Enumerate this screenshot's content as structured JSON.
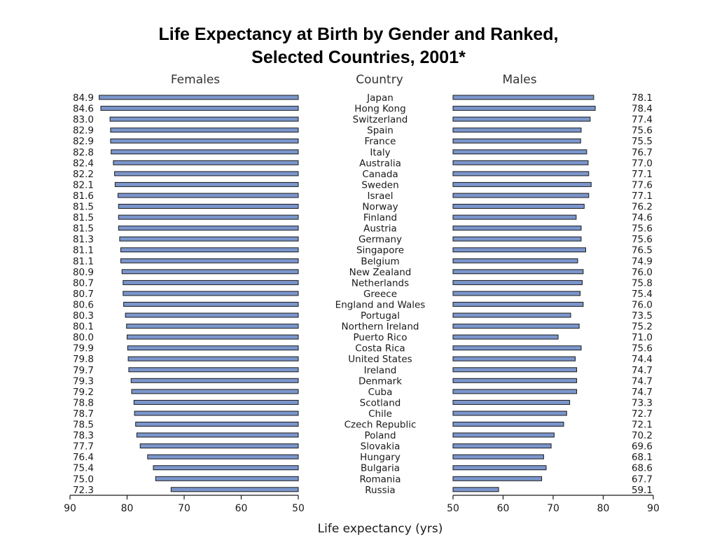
{
  "title_line1": "Life Expectancy at Birth by Gender and Ranked,",
  "title_line2": "Selected Countries, 2001*",
  "chart_data": {
    "type": "bar",
    "orientation": "horizontal",
    "layout": "back-to-back",
    "headers": {
      "left": "Females",
      "center": "Country",
      "right": "Males"
    },
    "categories": [
      "Japan",
      "Hong Kong",
      "Switzerland",
      "Spain",
      "France",
      "Italy",
      "Australia",
      "Canada",
      "Sweden",
      "Israel",
      "Norway",
      "Finland",
      "Austria",
      "Germany",
      "Singapore",
      "Belgium",
      "New Zealand",
      "Netherlands",
      "Greece",
      "England and Wales",
      "Portugal",
      "Northern Ireland",
      "Puerto Rico",
      "Costa Rica",
      "United States",
      "Ireland",
      "Denmark",
      "Cuba",
      "Scotland",
      "Chile",
      "Czech Republic",
      "Poland",
      "Slovakia",
      "Hungary",
      "Bulgaria",
      "Romania",
      "Russia"
    ],
    "series": [
      {
        "name": "Females",
        "values": [
          84.9,
          84.6,
          83.0,
          82.9,
          82.9,
          82.8,
          82.4,
          82.2,
          82.1,
          81.6,
          81.5,
          81.5,
          81.5,
          81.3,
          81.1,
          81.1,
          80.9,
          80.7,
          80.7,
          80.6,
          80.3,
          80.1,
          80.0,
          79.9,
          79.8,
          79.7,
          79.3,
          79.2,
          78.8,
          78.7,
          78.5,
          78.3,
          77.7,
          76.4,
          75.4,
          75.0,
          72.3
        ]
      },
      {
        "name": "Males",
        "values": [
          78.1,
          78.4,
          77.4,
          75.6,
          75.5,
          76.7,
          77.0,
          77.1,
          77.6,
          77.1,
          76.2,
          74.6,
          75.6,
          75.6,
          76.5,
          74.9,
          76.0,
          75.8,
          75.4,
          76.0,
          73.5,
          75.2,
          71.0,
          75.6,
          74.4,
          74.7,
          74.7,
          74.7,
          73.3,
          72.7,
          72.1,
          70.2,
          69.6,
          68.1,
          68.6,
          67.7,
          59.1
        ]
      }
    ],
    "female_axis": {
      "range": [
        90,
        50
      ],
      "ticks": [
        "90",
        "80",
        "70",
        "60",
        "50"
      ]
    },
    "male_axis": {
      "range": [
        50,
        90
      ],
      "ticks": [
        "50",
        "60",
        "70",
        "80",
        "90"
      ]
    },
    "xlabel": "Life expectancy (yrs)",
    "bar_color": "#7b96cc",
    "bar_edge_color": "#1a1a1a",
    "grid": false
  }
}
